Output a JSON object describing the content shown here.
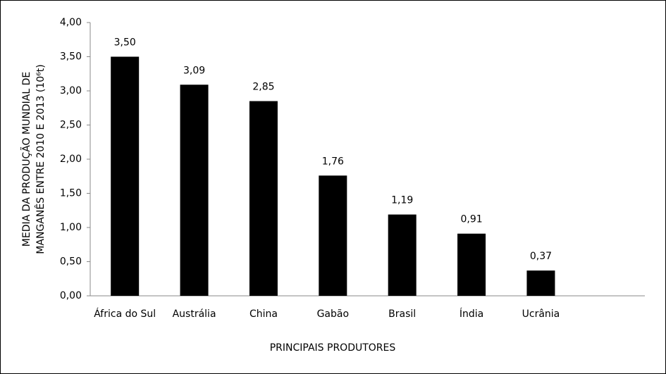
{
  "chart_data": {
    "type": "bar",
    "categories": [
      "África do Sul",
      "Austrália",
      "China",
      "Gabão",
      "Brasil",
      "Índia",
      "Ucrânia",
      null
    ],
    "values": [
      3.5,
      3.09,
      2.85,
      1.76,
      1.19,
      0.91,
      0.37,
      null
    ],
    "value_labels": [
      "3,50",
      "3,09",
      "2,85",
      "1,76",
      "1,19",
      "0,91",
      "0,37",
      null
    ],
    "color": "#000000",
    "ylim": [
      0,
      4
    ],
    "yticks": [
      {
        "value": 0,
        "label": "0,00"
      },
      {
        "value": 0.5,
        "label": "0,50"
      },
      {
        "value": 1,
        "label": "1,00"
      },
      {
        "value": 1.5,
        "label": "1,50"
      },
      {
        "value": 2,
        "label": "2,00"
      },
      {
        "value": 2.5,
        "label": "2,50"
      },
      {
        "value": 3,
        "label": "3,00"
      },
      {
        "value": 3.5,
        "label": "3,50"
      },
      {
        "value": 4,
        "label": "4,00"
      }
    ],
    "x_label": "PRINCIPAIS PRODUTORES",
    "y_label": [
      "MEDIA DA PRODUÇÃO MUNDIAL DE",
      "MANGANÊS ENTRE 2010 E 2013 (10⁶t)"
    ],
    "grid": false
  }
}
